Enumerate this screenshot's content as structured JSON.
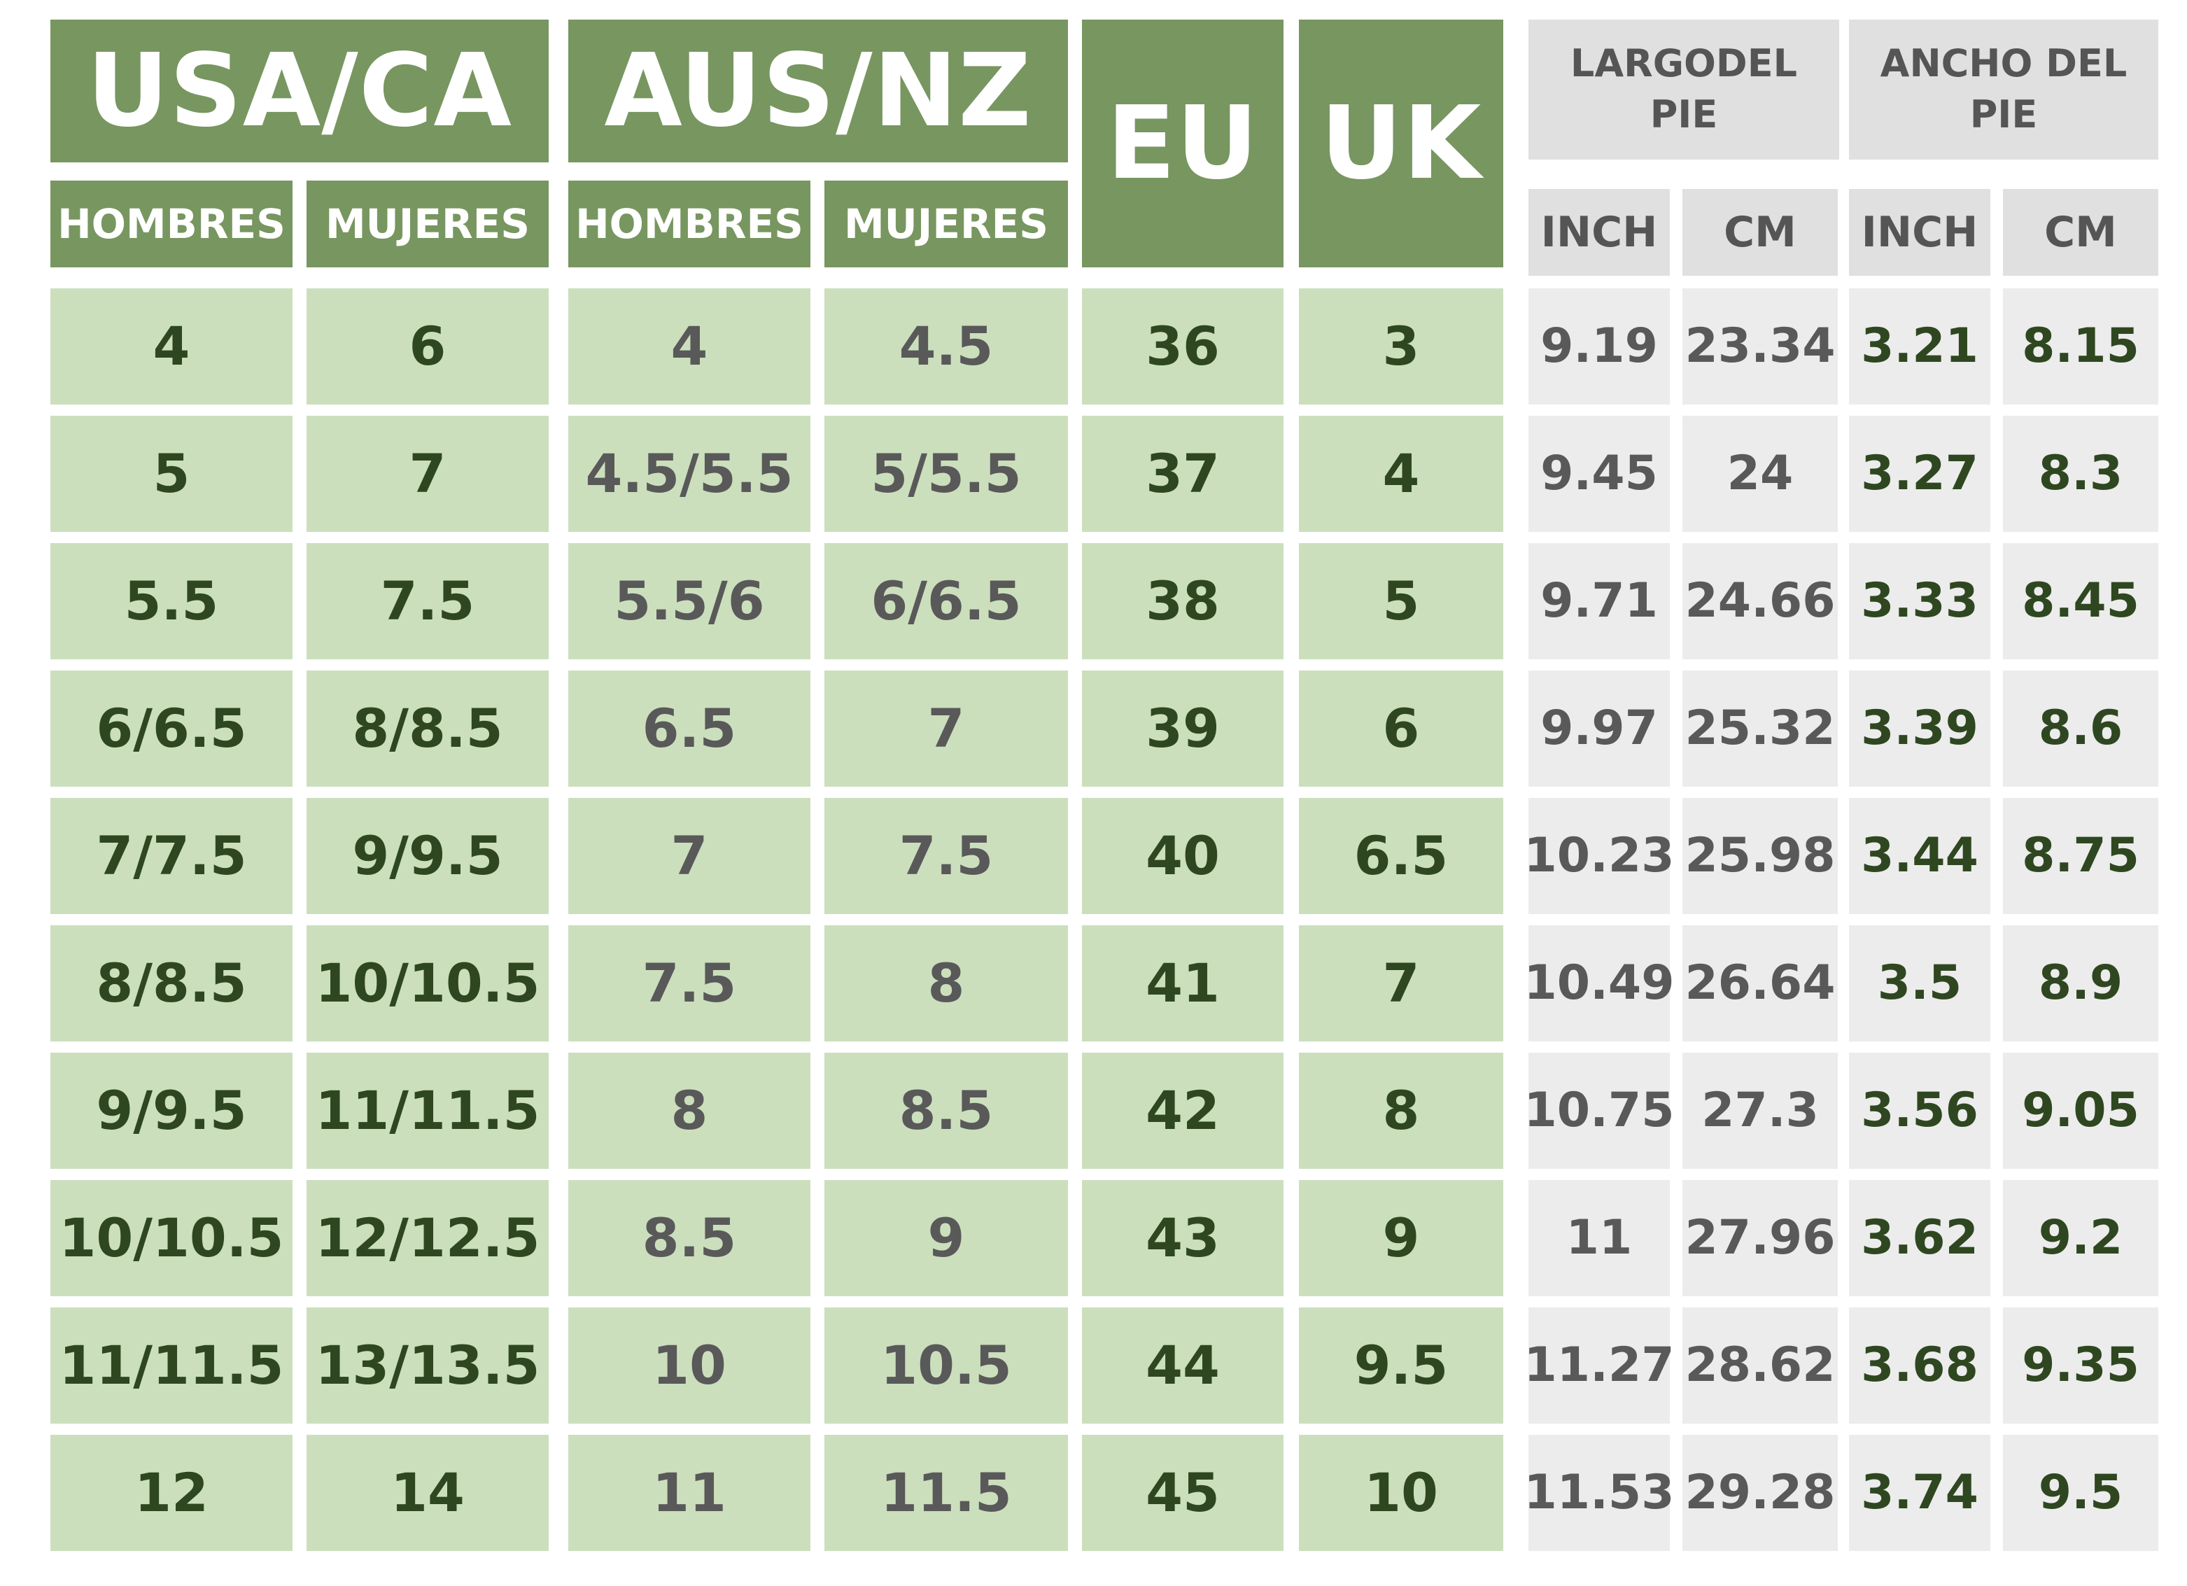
{
  "headers": {
    "usa": "USA/CA",
    "aus": "AUS/NZ",
    "eu": "EU",
    "uk": "UK",
    "largo": "LARGODEL PIE",
    "ancho": "ANCHO DEL PIE",
    "hombres": "HOMBRES",
    "mujeres": "MUJERES",
    "inch": "INCH",
    "cm": "CM"
  },
  "colors": {
    "header_green": "#789660",
    "cell_green": "#cbdfbd",
    "header_gray": "#e0e0e0",
    "cell_gray": "#ececec",
    "text_dark_green": "#2f4720",
    "text_gray": "#595959"
  },
  "rows": [
    [
      "4",
      "6",
      "4",
      "4.5",
      "36",
      "3",
      "9.19",
      "23.34",
      "3.21",
      "8.15"
    ],
    [
      "5",
      "7",
      "4.5/5.5",
      "5/5.5",
      "37",
      "4",
      "9.45",
      "24",
      "3.27",
      "8.3"
    ],
    [
      "5.5",
      "7.5",
      "5.5/6",
      "6/6.5",
      "38",
      "5",
      "9.71",
      "24.66",
      "3.33",
      "8.45"
    ],
    [
      "6/6.5",
      "8/8.5",
      "6.5",
      "7",
      "39",
      "6",
      "9.97",
      "25.32",
      "3.39",
      "8.6"
    ],
    [
      "7/7.5",
      "9/9.5",
      "7",
      "7.5",
      "40",
      "6.5",
      "10.23",
      "25.98",
      "3.44",
      "8.75"
    ],
    [
      "8/8.5",
      "10/10.5",
      "7.5",
      "8",
      "41",
      "7",
      "10.49",
      "26.64",
      "3.5",
      "8.9"
    ],
    [
      "9/9.5",
      "11/11.5",
      "8",
      "8.5",
      "42",
      "8",
      "10.75",
      "27.3",
      "3.56",
      "9.05"
    ],
    [
      "10/10.5",
      "12/12.5",
      "8.5",
      "9",
      "43",
      "9",
      "11",
      "27.96",
      "3.62",
      "9.2"
    ],
    [
      "11/11.5",
      "13/13.5",
      "10",
      "10.5",
      "44",
      "9.5",
      "11.27",
      "28.62",
      "3.68",
      "9.35"
    ],
    [
      "12",
      "14",
      "11",
      "11.5",
      "45",
      "10",
      "11.53",
      "29.28",
      "3.74",
      "9.5"
    ]
  ]
}
